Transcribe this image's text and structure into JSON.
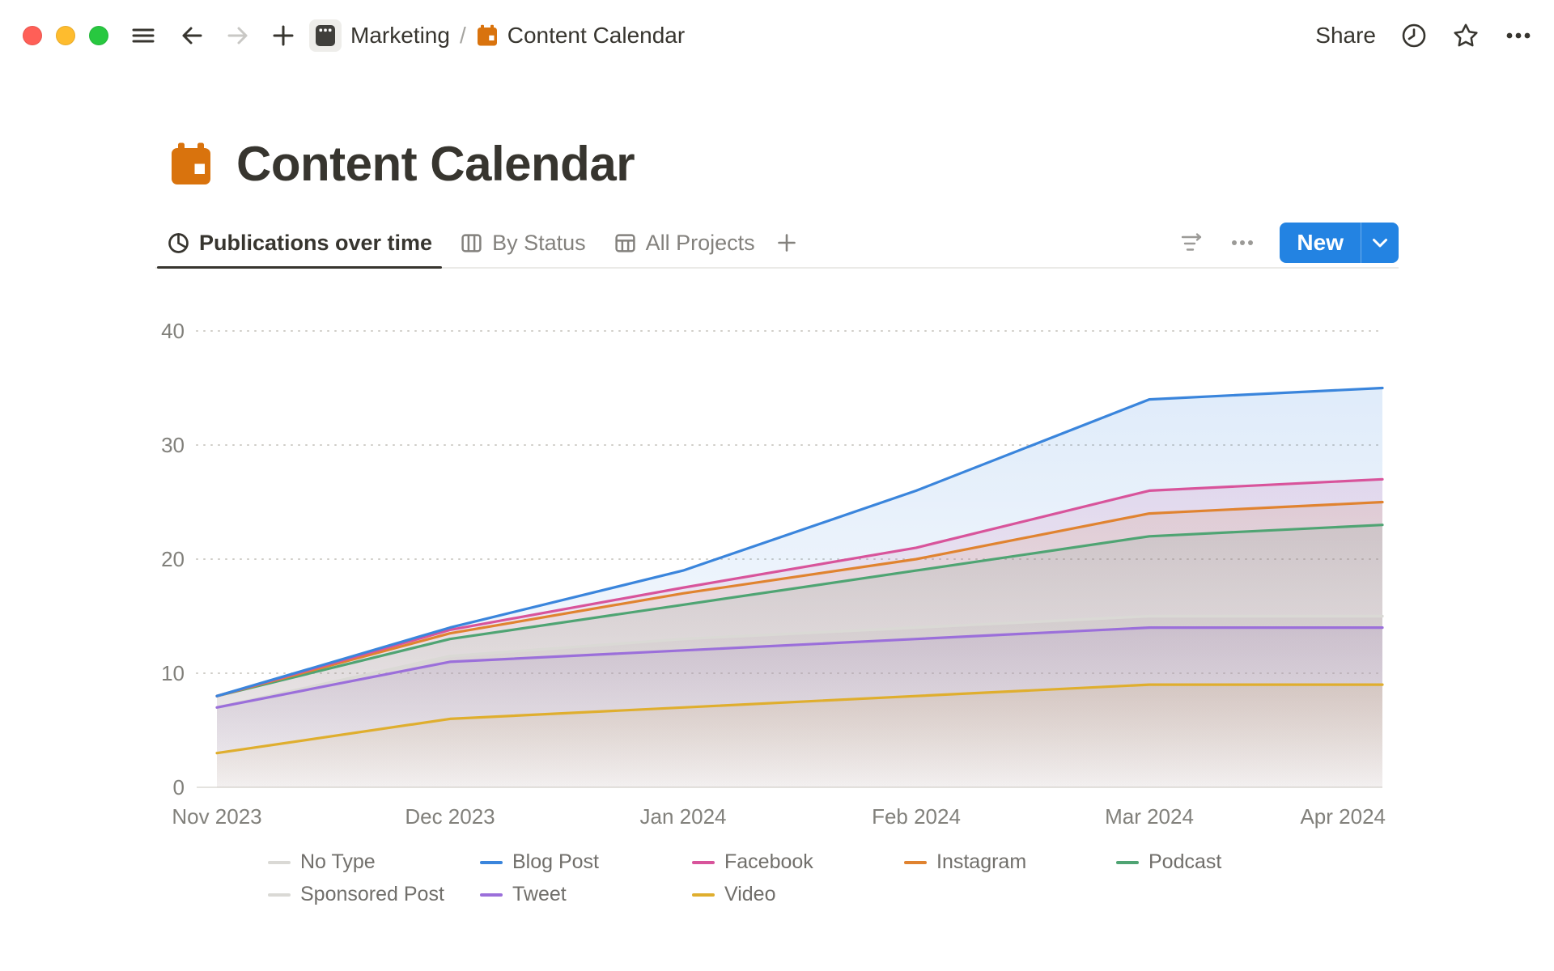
{
  "window": {
    "traffic_lights": [
      "close",
      "minimize",
      "zoom"
    ]
  },
  "topbar": {
    "breadcrumb": {
      "workspace": "Marketing",
      "separator": "/",
      "page": "Content Calendar"
    },
    "share_label": "Share"
  },
  "page": {
    "icon": "orange-calendar",
    "title": "Content Calendar"
  },
  "view_tabs": [
    {
      "label": "Publications over time",
      "icon": "pie-chart-icon",
      "active": true
    },
    {
      "label": "By Status",
      "icon": "board-columns-icon",
      "active": false
    },
    {
      "label": "All Projects",
      "icon": "table-icon",
      "active": false
    }
  ],
  "toolbar": {
    "new_label": "New",
    "accent_color": "#2383E2"
  },
  "chart_data": {
    "type": "area",
    "title": "Publications over time",
    "x": [
      "Nov 2023",
      "Dec 2023",
      "Jan 2024",
      "Feb 2024",
      "Mar 2024",
      "Apr 2024"
    ],
    "xlabel": "",
    "ylabel": "",
    "ylim": [
      0,
      40
    ],
    "yticks": [
      0,
      10,
      20,
      30,
      40
    ],
    "grid": "dotted-horizontal",
    "legend_position": "bottom",
    "series": [
      {
        "name": "No Type",
        "color": "#DAD9D5",
        "values": [
          7,
          11.5,
          13,
          14,
          15,
          15
        ]
      },
      {
        "name": "Blog Post",
        "color": "#3A85DC",
        "values": [
          8,
          14,
          19,
          26,
          34,
          35
        ]
      },
      {
        "name": "Facebook",
        "color": "#D8549B",
        "values": [
          8,
          13.8,
          17.5,
          21,
          26,
          27
        ]
      },
      {
        "name": "Instagram",
        "color": "#E08330",
        "values": [
          8,
          13.5,
          17,
          20,
          24,
          25
        ]
      },
      {
        "name": "Podcast",
        "color": "#4FA473",
        "values": [
          8,
          13,
          16,
          19,
          22,
          23
        ]
      },
      {
        "name": "Sponsored Post",
        "color": "#DAD9D5",
        "values": [
          7,
          11.5,
          13,
          14,
          15,
          15
        ]
      },
      {
        "name": "Tweet",
        "color": "#9B6FDA",
        "values": [
          7,
          11,
          12,
          13,
          14,
          14
        ]
      },
      {
        "name": "Video",
        "color": "#DFAE2E",
        "values": [
          3,
          6,
          7,
          8,
          9,
          9
        ]
      }
    ],
    "draw_order": [
      "Sponsored Post",
      "No Type",
      "Video",
      "Tweet",
      "Podcast",
      "Instagram",
      "Facebook",
      "Blog Post"
    ]
  }
}
